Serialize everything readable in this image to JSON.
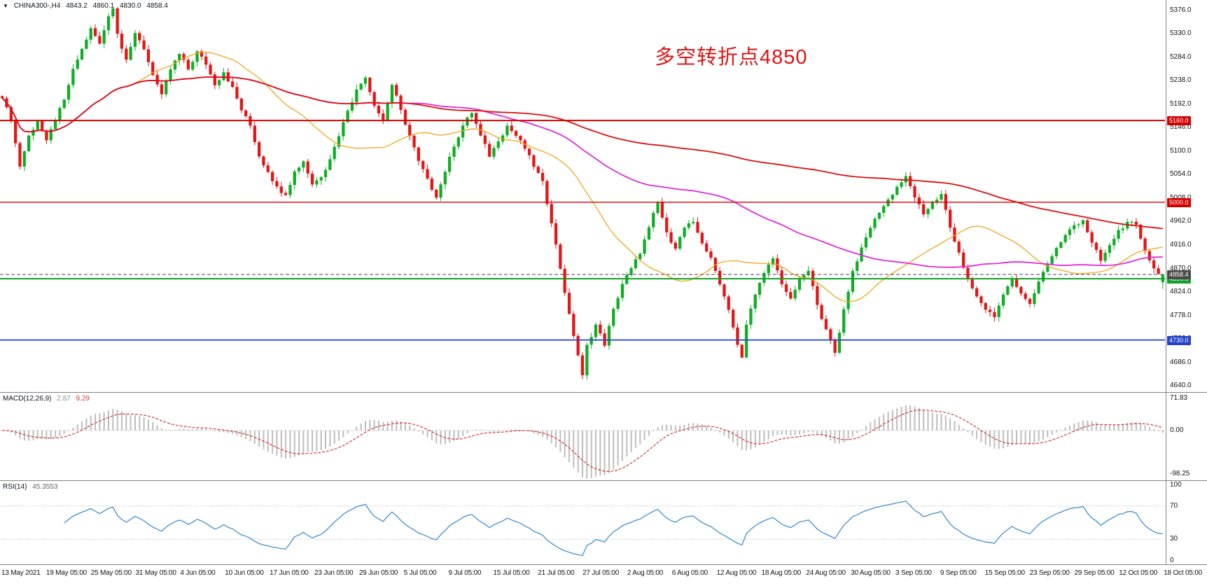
{
  "icons": {
    "collapse": "▼"
  },
  "header": {
    "symbol_tf": "CHINA300-,H4"
  },
  "colors": {
    "up": "#0fae26",
    "down": "#e41616",
    "ma_fast": "#f2a51c",
    "ma_mid": "#e02ad8",
    "ma_slow": "#dd0f0f",
    "macd_hist": "#bdbdbd",
    "macd_signal": "#d43a3a",
    "rsi_line": "#3f8fd4",
    "annotation": "#e01515",
    "axis_text": "#141414",
    "separator": "#828282"
  },
  "chart_data": [
    {
      "type": "candlestick",
      "panel": "price",
      "symbol": "CHINA300-",
      "timeframe": "H4",
      "ohlc_display": {
        "open": "4843.2",
        "high": "4860.1",
        "low": "4830.0",
        "close": "4858.4"
      },
      "annotation": {
        "text": "多空转折点4850"
      },
      "ylim": [
        4628,
        5396
      ],
      "y_ticks": [
        "5376.0",
        "5330.0",
        "5284.0",
        "5238.0",
        "5192.0",
        "5146.0",
        "5100.0",
        "5054.0",
        "5008.0",
        "4962.0",
        "4916.0",
        "4870.0",
        "4824.0",
        "4778.0",
        "4732.0",
        "4686.0",
        "4640.0"
      ],
      "x_ticks": [
        "13 May 2021",
        "19 May 05:00",
        "25 May 05:00",
        "31 May 05:00",
        "4 Jun 05:00",
        "10 Jun 05:00",
        "17 Jun 05:00",
        "23 Jun 05:00",
        "29 Jun 05:00",
        "5 Jul 05:00",
        "9 Jul 05:00",
        "15 Jul 05:00",
        "21 Jul 05:00",
        "27 Jul 05:00",
        "2 Aug 05:00",
        "6 Aug 05:00",
        "12 Aug 05:00",
        "18 Aug 05:00",
        "24 Aug 05:00",
        "30 Aug 05:00",
        "3 Sep 05:00",
        "9 Sep 05:00",
        "15 Sep 05:00",
        "23 Sep 05:00",
        "29 Sep 05:00",
        "12 Oct 05:00",
        "18 Oct 05:00"
      ],
      "bars": 263,
      "noise": 9,
      "wick": 8,
      "price_path": [
        [
          0,
          5205
        ],
        [
          2,
          5160
        ],
        [
          4,
          5070
        ],
        [
          6,
          5130
        ],
        [
          8,
          5160
        ],
        [
          10,
          5120
        ],
        [
          12,
          5160
        ],
        [
          14,
          5200
        ],
        [
          16,
          5260
        ],
        [
          18,
          5300
        ],
        [
          20,
          5340
        ],
        [
          22,
          5310
        ],
        [
          24,
          5365
        ],
        [
          25,
          5380
        ],
        [
          26,
          5330
        ],
        [
          28,
          5280
        ],
        [
          30,
          5330
        ],
        [
          32,
          5300
        ],
        [
          34,
          5250
        ],
        [
          36,
          5210
        ],
        [
          38,
          5260
        ],
        [
          40,
          5290
        ],
        [
          42,
          5260
        ],
        [
          44,
          5295
        ],
        [
          46,
          5270
        ],
        [
          48,
          5230
        ],
        [
          50,
          5255
        ],
        [
          52,
          5225
        ],
        [
          54,
          5180
        ],
        [
          56,
          5150
        ],
        [
          58,
          5090
        ],
        [
          60,
          5060
        ],
        [
          62,
          5030
        ],
        [
          64,
          5015
        ],
        [
          66,
          5060
        ],
        [
          68,
          5080
        ],
        [
          70,
          5035
        ],
        [
          72,
          5050
        ],
        [
          74,
          5085
        ],
        [
          76,
          5130
        ],
        [
          78,
          5180
        ],
        [
          80,
          5220
        ],
        [
          82,
          5245
        ],
        [
          84,
          5190
        ],
        [
          86,
          5160
        ],
        [
          88,
          5230
        ],
        [
          90,
          5180
        ],
        [
          92,
          5130
        ],
        [
          94,
          5080
        ],
        [
          96,
          5045
        ],
        [
          98,
          5010
        ],
        [
          100,
          5060
        ],
        [
          102,
          5110
        ],
        [
          104,
          5150
        ],
        [
          106,
          5175
        ],
        [
          108,
          5130
        ],
        [
          110,
          5090
        ],
        [
          112,
          5120
        ],
        [
          114,
          5150
        ],
        [
          116,
          5130
        ],
        [
          118,
          5105
        ],
        [
          120,
          5070
        ],
        [
          122,
          5040
        ],
        [
          124,
          4960
        ],
        [
          126,
          4870
        ],
        [
          128,
          4780
        ],
        [
          130,
          4700
        ],
        [
          131,
          4660
        ],
        [
          132,
          4720
        ],
        [
          134,
          4760
        ],
        [
          136,
          4720
        ],
        [
          138,
          4790
        ],
        [
          140,
          4840
        ],
        [
          142,
          4870
        ],
        [
          144,
          4900
        ],
        [
          146,
          4950
        ],
        [
          148,
          5000
        ],
        [
          150,
          4940
        ],
        [
          152,
          4910
        ],
        [
          154,
          4950
        ],
        [
          156,
          4960
        ],
        [
          158,
          4920
        ],
        [
          160,
          4890
        ],
        [
          162,
          4840
        ],
        [
          164,
          4790
        ],
        [
          166,
          4720
        ],
        [
          167,
          4695
        ],
        [
          168,
          4760
        ],
        [
          170,
          4820
        ],
        [
          172,
          4860
        ],
        [
          174,
          4890
        ],
        [
          176,
          4840
        ],
        [
          178,
          4810
        ],
        [
          180,
          4850
        ],
        [
          182,
          4865
        ],
        [
          184,
          4800
        ],
        [
          186,
          4750
        ],
        [
          188,
          4705
        ],
        [
          190,
          4790
        ],
        [
          192,
          4865
        ],
        [
          194,
          4910
        ],
        [
          196,
          4950
        ],
        [
          198,
          4980
        ],
        [
          200,
          5005
        ],
        [
          202,
          5030
        ],
        [
          204,
          5050
        ],
        [
          206,
          5010
        ],
        [
          208,
          4975
        ],
        [
          210,
          5000
        ],
        [
          212,
          5015
        ],
        [
          214,
          4950
        ],
        [
          216,
          4900
        ],
        [
          218,
          4850
        ],
        [
          220,
          4815
        ],
        [
          222,
          4790
        ],
        [
          224,
          4775
        ],
        [
          226,
          4820
        ],
        [
          228,
          4850
        ],
        [
          230,
          4820
        ],
        [
          232,
          4800
        ],
        [
          234,
          4845
        ],
        [
          236,
          4880
        ],
        [
          238,
          4910
        ],
        [
          240,
          4935
        ],
        [
          242,
          4955
        ],
        [
          244,
          4965
        ],
        [
          246,
          4920
        ],
        [
          248,
          4885
        ],
        [
          250,
          4915
        ],
        [
          252,
          4945
        ],
        [
          254,
          4960
        ],
        [
          256,
          4955
        ],
        [
          258,
          4905
        ],
        [
          260,
          4870
        ],
        [
          262,
          4858
        ]
      ],
      "levels": [
        {
          "value": 5160,
          "label": "5160.0",
          "color": "#d40000",
          "width": 2
        },
        {
          "value": 5000,
          "label": "5000.0",
          "color": "#d40000",
          "width": 1.4
        },
        {
          "value": 4850,
          "label": "4850.0",
          "color": "#12a029",
          "width": 2
        },
        {
          "value": 4730,
          "label": "4730.0",
          "color": "#2443c8",
          "width": 1.8
        }
      ],
      "current_price": {
        "value": 4858.4,
        "label": "4858.4",
        "color": "#4a4a4a"
      },
      "moving_averages": [
        {
          "period": 30,
          "color": "#f2a51c",
          "width": 1.3
        },
        {
          "period": 90,
          "color": "#e02ad8",
          "width": 1.8
        },
        {
          "period": 200,
          "color": "#dd0f0f",
          "width": 1.8
        }
      ]
    },
    {
      "type": "bar",
      "panel": "macd",
      "label": "MACD(12,26,9)",
      "main_value": "2.87",
      "signal_value": "9.29",
      "params": [
        12,
        26,
        9
      ],
      "ylim": [
        -112,
        85
      ],
      "y_ticks": [
        "71.83",
        "0.00",
        "-98.25"
      ]
    },
    {
      "type": "line",
      "panel": "rsi",
      "label": "RSI(14)",
      "value": "45.3553",
      "period": 14,
      "levels": [
        70,
        30
      ],
      "ylim": [
        0,
        100
      ],
      "y_ticks": [
        "100",
        "70",
        "30",
        "0"
      ]
    }
  ]
}
